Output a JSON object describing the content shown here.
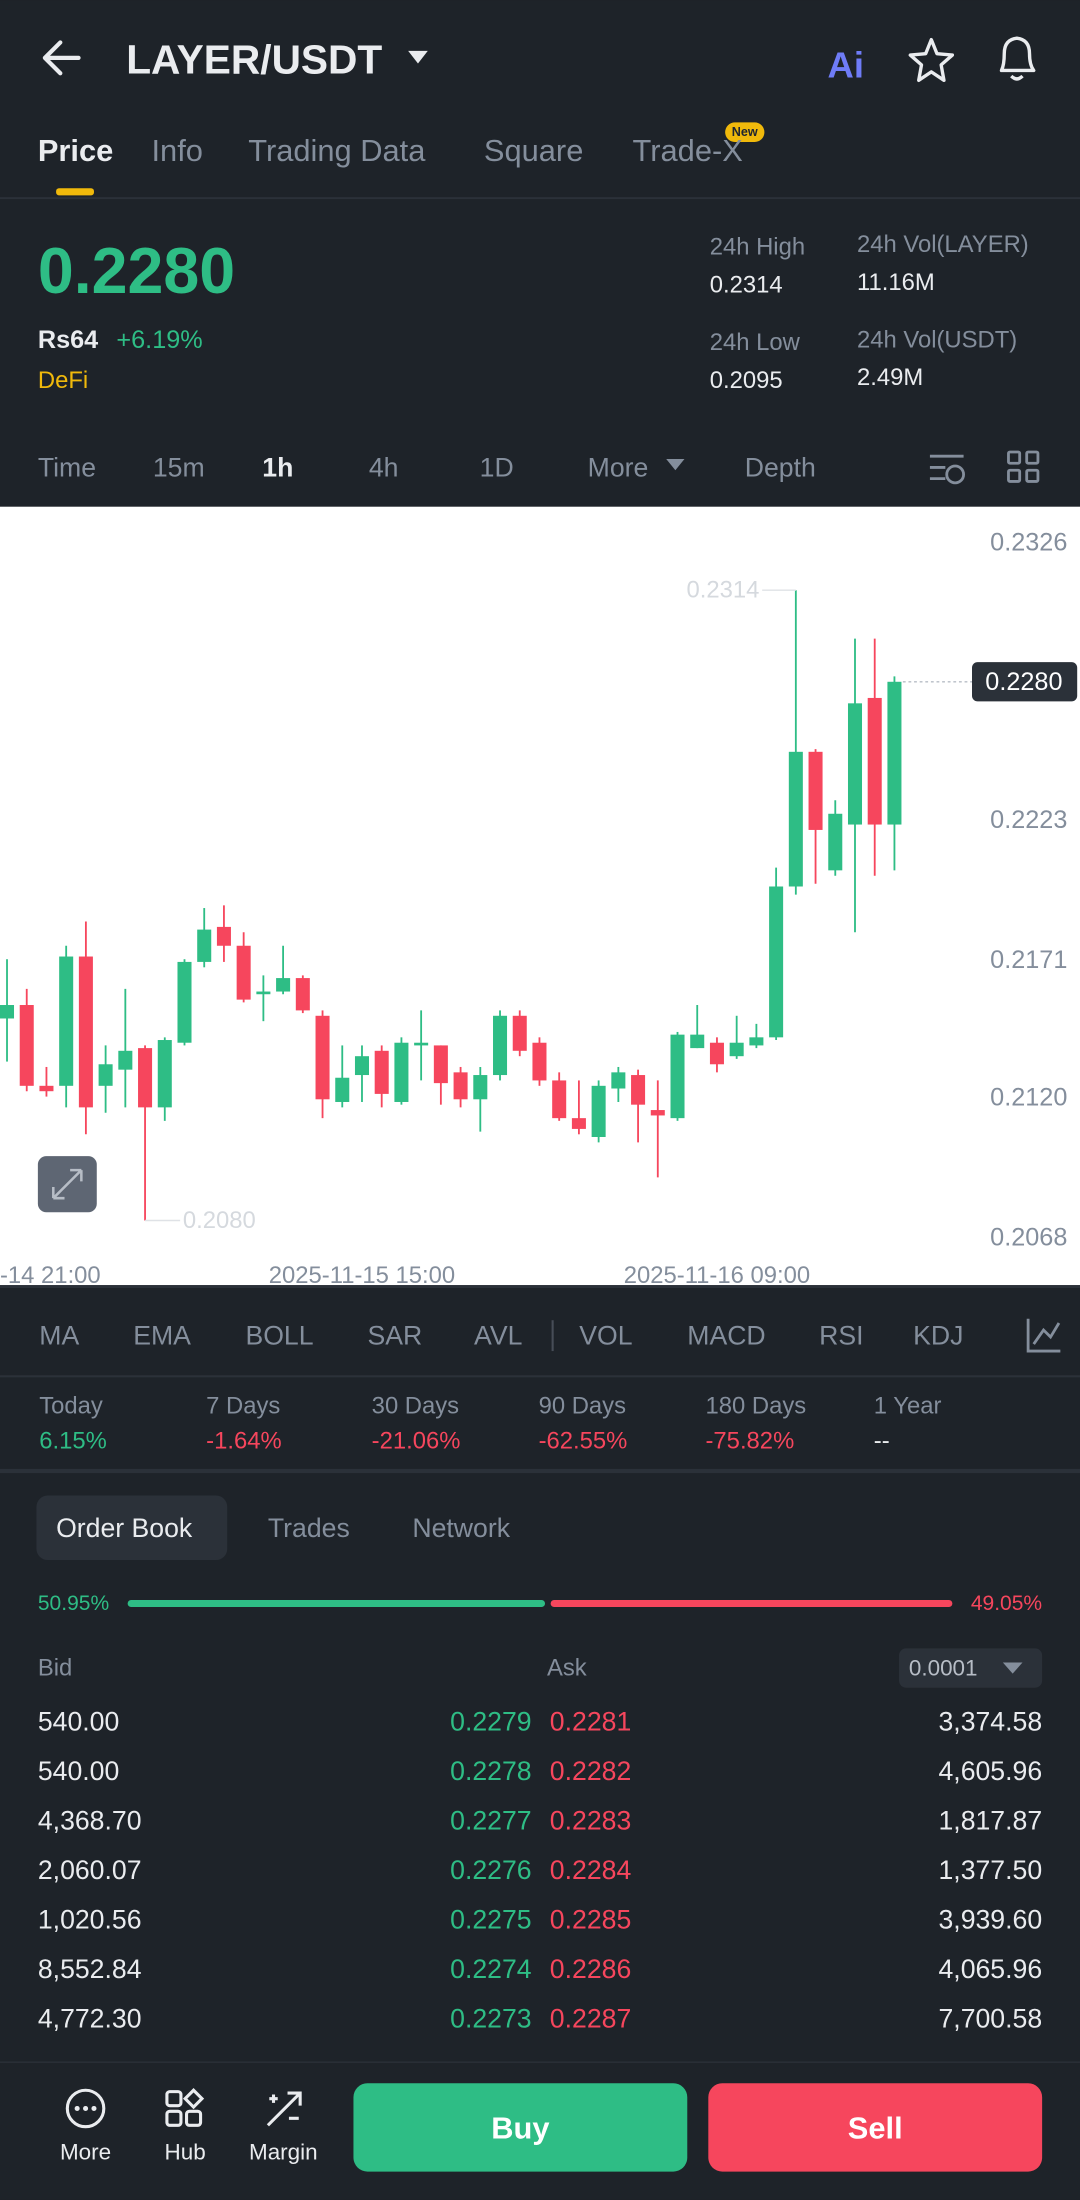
{
  "header": {
    "title": "LAYER/USDT",
    "ai": "Ai"
  },
  "tabs": [
    "Price",
    "Info",
    "Trading Data",
    "Square",
    "Trade-X"
  ],
  "new_badge": "New",
  "ticker": {
    "price": "0.2280",
    "local_price": "Rs64",
    "change": "+6.19%",
    "sector": "DeFi",
    "stats": [
      {
        "label": "24h High",
        "value": "0.2314"
      },
      {
        "label": "24h Low",
        "value": "0.2095"
      },
      {
        "label": "24h Vol(LAYER)",
        "value": "11.16M"
      },
      {
        "label": "24h Vol(USDT)",
        "value": "2.49M"
      }
    ]
  },
  "intervals": [
    "Time",
    "15m",
    "1h",
    "4h",
    "1D",
    "More",
    "Depth"
  ],
  "chart_data": {
    "type": "candlestick",
    "categories": [
      "-14 21:00",
      null,
      null,
      null,
      null,
      null,
      null,
      null,
      null,
      null,
      null,
      null,
      null,
      null,
      null,
      null,
      null,
      null,
      "2025-11-15 15:00",
      null,
      null,
      null,
      null,
      null,
      null,
      null,
      null,
      null,
      null,
      null,
      null,
      null,
      null,
      null,
      null,
      null,
      "2025-11-16 09:00",
      null,
      null,
      null,
      null,
      null,
      null,
      null,
      null,
      null
    ],
    "open": [
      0.2155,
      0.216,
      0.213,
      0.213,
      0.2178,
      0.213,
      0.2136,
      0.2144,
      0.2122,
      0.2146,
      0.2176,
      0.2189,
      0.2182,
      0.2164,
      0.2165,
      0.217,
      0.2156,
      0.2124,
      0.2134,
      0.2143,
      0.2124,
      0.2145,
      0.2145,
      0.2135,
      0.2125,
      0.2134,
      0.2156,
      0.2146,
      0.2132,
      0.2118,
      0.2111,
      0.2129,
      0.2134,
      0.2121,
      0.2118,
      0.2144,
      0.2146,
      0.2141,
      0.2145,
      0.2148,
      0.2204,
      0.2254,
      0.221,
      0.2227,
      0.2274,
      0.2227
    ],
    "high": [
      0.2177,
      0.2166,
      0.2137,
      0.2182,
      0.2191,
      0.2145,
      0.2166,
      0.2145,
      0.2148,
      0.2177,
      0.2196,
      0.2197,
      0.2187,
      0.2171,
      0.2182,
      0.2171,
      0.2158,
      0.2145,
      0.2145,
      0.2145,
      0.2148,
      0.2158,
      0.2145,
      0.2137,
      0.2137,
      0.2158,
      0.2158,
      0.2148,
      0.2135,
      0.2132,
      0.2132,
      0.2137,
      0.2136,
      0.2132,
      0.215,
      0.216,
      0.2148,
      0.2156,
      0.2153,
      0.2211,
      0.2314,
      0.2255,
      0.2236,
      0.2296,
      0.2296,
      0.2282
    ],
    "low": [
      0.2139,
      0.2128,
      0.2126,
      0.2122,
      0.2112,
      0.212,
      0.2122,
      0.208,
      0.2117,
      0.2145,
      0.2174,
      0.2176,
      0.2161,
      0.2154,
      0.2164,
      0.2157,
      0.2118,
      0.2122,
      0.2124,
      0.2122,
      0.2123,
      0.2132,
      0.2123,
      0.2122,
      0.2113,
      0.2132,
      0.2141,
      0.213,
      0.2117,
      0.2112,
      0.2109,
      0.2124,
      0.2109,
      0.2096,
      0.2117,
      0.2144,
      0.2135,
      0.214,
      0.2144,
      0.2147,
      0.2201,
      0.2205,
      0.2208,
      0.2187,
      0.2208,
      0.221
    ],
    "close": [
      0.216,
      0.213,
      0.2128,
      0.2178,
      0.2122,
      0.2138,
      0.2143,
      0.2122,
      0.2147,
      0.2176,
      0.2188,
      0.2182,
      0.2162,
      0.2165,
      0.217,
      0.2158,
      0.2125,
      0.2133,
      0.2141,
      0.2127,
      0.2146,
      0.2146,
      0.2131,
      0.2125,
      0.2134,
      0.2156,
      0.2143,
      0.2132,
      0.2118,
      0.2114,
      0.213,
      0.2135,
      0.2123,
      0.2119,
      0.2149,
      0.2149,
      0.2138,
      0.2146,
      0.2148,
      0.2204,
      0.2254,
      0.2225,
      0.2231,
      0.2272,
      0.2227,
      0.228
    ],
    "up_color": "#2ebd85",
    "down_color": "#f6465d",
    "ylim": [
      0.2056,
      0.2345
    ],
    "yticks": [
      0.2326,
      0.2223,
      0.2171,
      {
        "value": 0.212,
        "label": "0.2120"
      },
      0.2068
    ],
    "last_price": {
      "value": 0.228,
      "label": "0.2280"
    },
    "high_label": 0.2314,
    "low_label": {
      "value": 0.208,
      "label": "0.2080"
    }
  },
  "indicators": [
    "MA",
    "EMA",
    "BOLL",
    "SAR",
    "AVL",
    "VOL",
    "MACD",
    "RSI",
    "KDJ"
  ],
  "performance": [
    {
      "label": "Today",
      "value": "6.15%"
    },
    {
      "label": "7 Days",
      "value": "-1.64%"
    },
    {
      "label": "30 Days",
      "value": "-21.06%"
    },
    {
      "label": "90 Days",
      "value": "-62.55%"
    },
    {
      "label": "180 Days",
      "value": "-75.82%"
    },
    {
      "label": "1 Year",
      "value": "--"
    }
  ],
  "order_book": {
    "tabs": [
      "Order Book",
      "Trades",
      "Network"
    ],
    "bid_share": {
      "value": 50.95,
      "label": "50.95%"
    },
    "ask_share": {
      "value": 49.05,
      "label": "49.05%"
    },
    "bid_label": "Bid",
    "ask_label": "Ask",
    "step": "0.0001",
    "rows": [
      [
        "540.00",
        "0.2279",
        "0.2281",
        "3,374.58"
      ],
      [
        "540.00",
        "0.2278",
        "0.2282",
        "4,605.96"
      ],
      [
        "4,368.70",
        "0.2277",
        "0.2283",
        "1,817.87"
      ],
      [
        "2,060.07",
        "0.2276",
        "0.2284",
        "1,377.50"
      ],
      [
        "1,020.56",
        "0.2275",
        "0.2285",
        "3,939.60"
      ],
      [
        "8,552.84",
        "0.2274",
        "0.2286",
        "4,065.96"
      ],
      [
        "4,772.30",
        "0.2273",
        "0.2287",
        "7,700.58"
      ]
    ]
  },
  "actions": {
    "tools": [
      "More",
      "Hub",
      "Margin"
    ],
    "buy": "Buy",
    "sell": "Sell"
  }
}
